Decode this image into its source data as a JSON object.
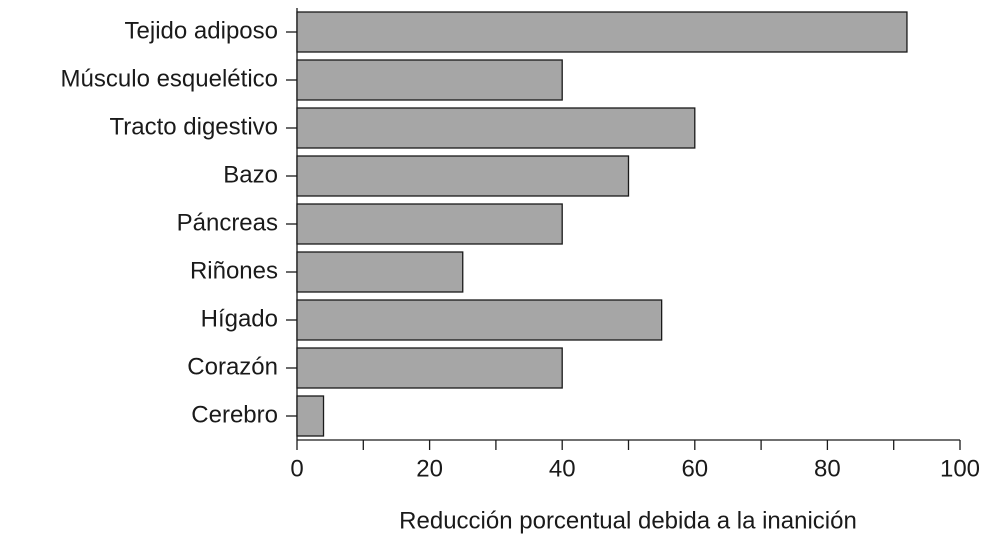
{
  "chart_data": {
    "type": "barh",
    "categories": [
      "Tejido adiposo",
      "Músculo esquelético",
      "Tracto digestivo",
      "Bazo",
      "Páncreas",
      "Riñones",
      "Hígado",
      "Corazón",
      "Cerebro"
    ],
    "values": [
      92,
      40,
      60,
      50,
      40,
      25,
      55,
      40,
      4
    ],
    "color": "#a6a6a6",
    "xlabel": "Reducción porcentual debida a la inanición",
    "xlim": [
      0,
      100
    ],
    "xticks": [
      0,
      20,
      40,
      60,
      80,
      100
    ],
    "xminorticks": [
      10,
      30,
      50,
      70,
      90
    ],
    "grid": false
  }
}
